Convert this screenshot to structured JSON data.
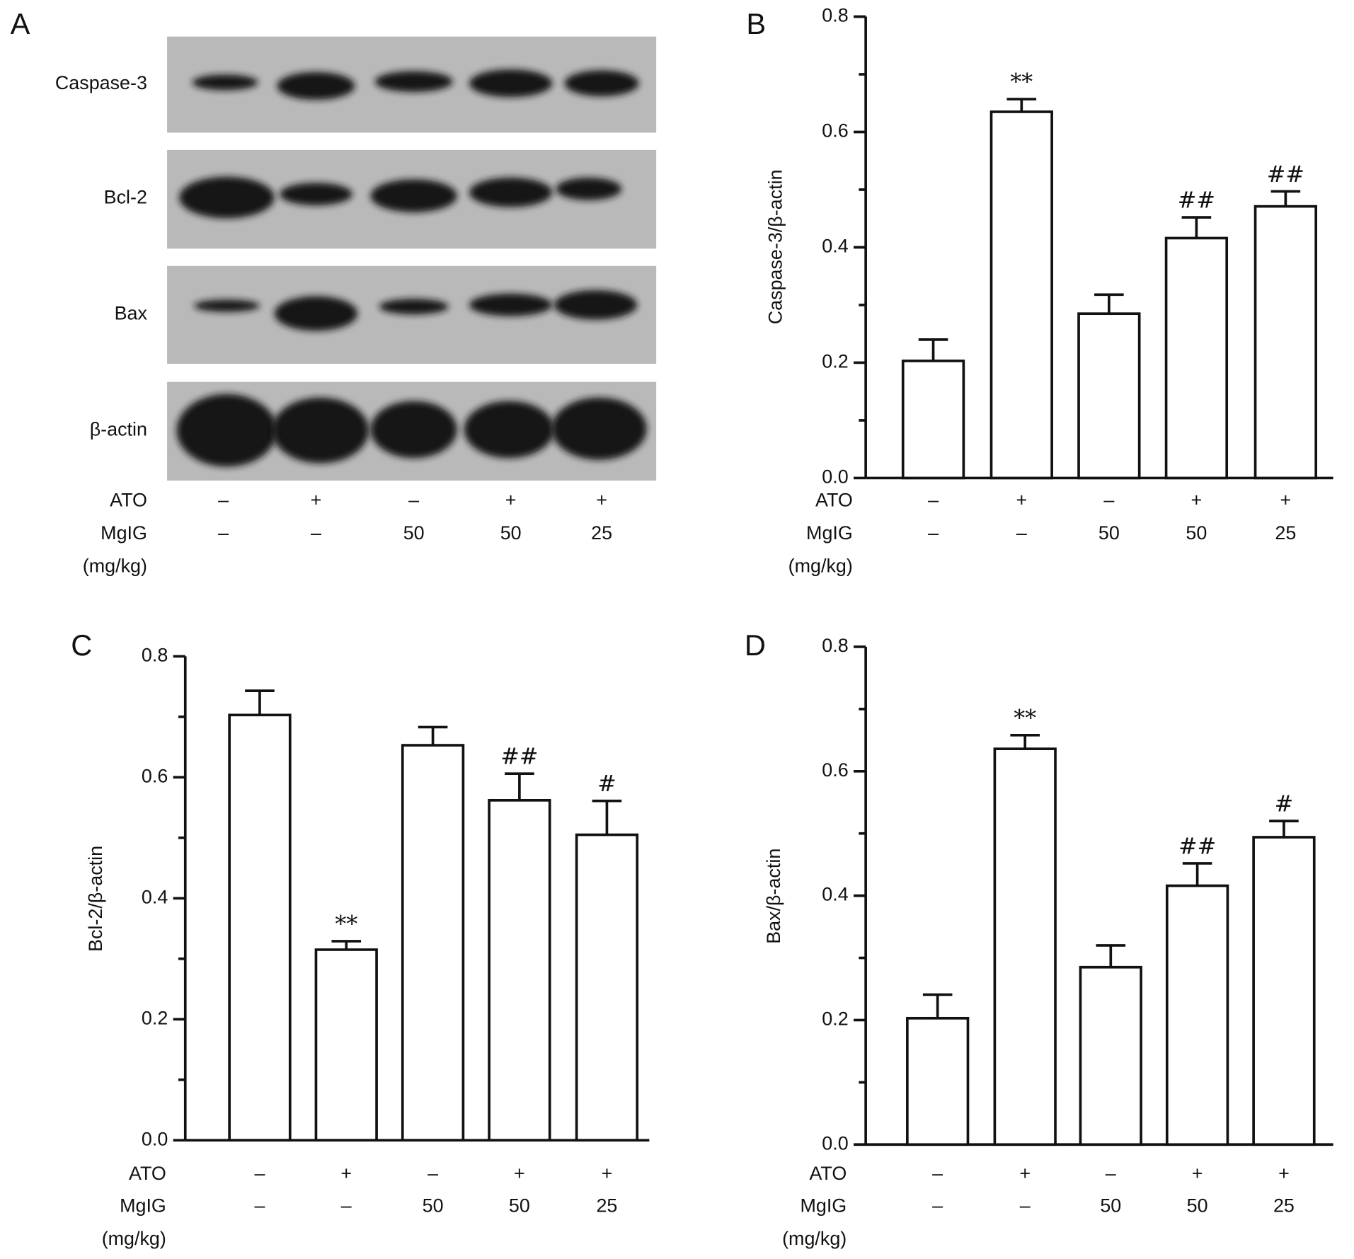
{
  "blot": {
    "panel_label": "A",
    "proteins": [
      "Caspase-3",
      "Bcl-2",
      "Bax",
      "β-actin"
    ],
    "conditions": [
      {
        "name": "ATO",
        "labels": [
          "–",
          "+",
          "–",
          "+",
          "+"
        ]
      },
      {
        "name": "MgIG",
        "labels": [
          "–",
          "–",
          "50",
          "50",
          "25"
        ]
      }
    ],
    "unit": "(mg/kg)"
  },
  "chart_data": [
    {
      "type": "bar",
      "panel_label": "B",
      "ylabel": "Caspase-3/β-actin",
      "conditions": [
        {
          "name": "ATO",
          "labels": [
            "–",
            "+",
            "–",
            "+",
            "+"
          ]
        },
        {
          "name": "MgIG",
          "labels": [
            "–",
            "–",
            "50",
            "50",
            "25"
          ]
        }
      ],
      "unit": "(mg/kg)",
      "values": [
        0.203,
        0.635,
        0.285,
        0.416,
        0.471
      ],
      "errors": [
        0.037,
        0.022,
        0.033,
        0.036,
        0.026
      ],
      "annotations": [
        null,
        "**",
        null,
        "##",
        "##"
      ],
      "color": "#ffffff",
      "ylim": [
        0,
        0.8
      ],
      "yticks": [
        {
          "value": 0,
          "label": "0.0"
        },
        {
          "value": 0.2,
          "label": "0.2"
        },
        {
          "value": 0.4,
          "label": "0.4"
        },
        {
          "value": 0.6,
          "label": "0.6"
        },
        {
          "value": 0.8,
          "label": "0.8"
        }
      ],
      "minor_yticks": [
        0.1,
        0.3,
        0.5,
        0.7
      ]
    },
    {
      "type": "bar",
      "panel_label": "C",
      "ylabel": "Bcl-2/β-actin",
      "conditions": [
        {
          "name": "ATO",
          "labels": [
            "–",
            "+",
            "–",
            "+",
            "+"
          ]
        },
        {
          "name": "MgIG",
          "labels": [
            "–",
            "–",
            "50",
            "50",
            "25"
          ]
        }
      ],
      "unit": "(mg/kg)",
      "values": [
        0.703,
        0.315,
        0.653,
        0.562,
        0.505
      ],
      "errors": [
        0.04,
        0.014,
        0.03,
        0.044,
        0.056
      ],
      "annotations": [
        null,
        "**",
        null,
        "##",
        "#"
      ],
      "color": "#ffffff",
      "ylim": [
        0,
        0.8
      ],
      "yticks": [
        {
          "value": 0,
          "label": "0.0"
        },
        {
          "value": 0.2,
          "label": "0.2"
        },
        {
          "value": 0.4,
          "label": "0.4"
        },
        {
          "value": 0.6,
          "label": "0.6"
        },
        {
          "value": 0.8,
          "label": "0.8"
        }
      ],
      "minor_yticks": [
        0.1,
        0.3,
        0.5,
        0.7
      ]
    },
    {
      "type": "bar",
      "panel_label": "D",
      "ylabel": "Bax/β-actin",
      "conditions": [
        {
          "name": "ATO",
          "labels": [
            "–",
            "+",
            "–",
            "+",
            "+"
          ]
        },
        {
          "name": "MgIG",
          "labels": [
            "–",
            "–",
            "50",
            "50",
            "25"
          ]
        }
      ],
      "unit": "(mg/kg)",
      "values": [
        0.203,
        0.636,
        0.285,
        0.416,
        0.494
      ],
      "errors": [
        0.038,
        0.022,
        0.035,
        0.036,
        0.026
      ],
      "annotations": [
        null,
        "**",
        null,
        "##",
        "#"
      ],
      "color": "#ffffff",
      "ylim": [
        0,
        0.8
      ],
      "yticks": [
        {
          "value": 0,
          "label": "0.0"
        },
        {
          "value": 0.2,
          "label": "0.2"
        },
        {
          "value": 0.4,
          "label": "0.4"
        },
        {
          "value": 0.6,
          "label": "0.6"
        },
        {
          "value": 0.8,
          "label": "0.8"
        }
      ],
      "minor_yticks": [
        0.1,
        0.3,
        0.5,
        0.7
      ]
    }
  ]
}
